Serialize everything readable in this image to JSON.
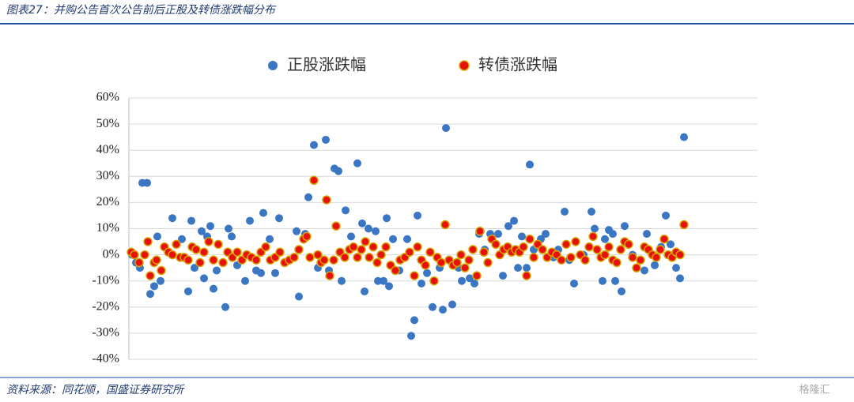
{
  "chart_data": {
    "type": "scatter",
    "title": "图表27：并购公告首次公告前后正股及转债涨跌幅分布",
    "source": "资料来源：同花顺，国盛证券研究所",
    "watermark": "格隆汇",
    "xlim": [
      0,
      795
    ],
    "ylim": [
      -40,
      60
    ],
    "yticks": [
      {
        "value": -40,
        "label": "-40%"
      },
      {
        "value": -30,
        "label": "-30%"
      },
      {
        "value": -20,
        "label": "-20%"
      },
      {
        "value": -10,
        "label": "-10%"
      },
      {
        "value": 0,
        "label": "0%"
      },
      {
        "value": 10,
        "label": "10%"
      },
      {
        "value": 20,
        "label": "20%"
      },
      {
        "value": 30,
        "label": "30%"
      },
      {
        "value": 40,
        "label": "40%"
      },
      {
        "value": 50,
        "label": "50%"
      },
      {
        "value": 60,
        "label": "60%"
      }
    ],
    "grid": true,
    "legend": "top",
    "series": [
      {
        "name": "正股涨跌幅",
        "color": "#3a76c4",
        "x": [
          4,
          9,
          14,
          17,
          23,
          27,
          32,
          36,
          40,
          55,
          67,
          75,
          79,
          83,
          92,
          95,
          99,
          103,
          107,
          111,
          122,
          126,
          130,
          137,
          147,
          153,
          161,
          167,
          170,
          178,
          185,
          190,
          212,
          215,
          223,
          227,
          234,
          239,
          249,
          253,
          260,
          265,
          269,
          274,
          281,
          289,
          295,
          298,
          303,
          312,
          315,
          322,
          326,
          329,
          334,
          342,
          352,
          357,
          361,
          365,
          370,
          377,
          384,
          393,
          397,
          401,
          409,
          417,
          421,
          431,
          437,
          443,
          450,
          457,
          467,
          473,
          480,
          487,
          492,
          497,
          503,
          507,
          512,
          521,
          527,
          537,
          543,
          551,
          557,
          563,
          575,
          585,
          589,
          599,
          602,
          607,
          612,
          615,
          623,
          627,
          637,
          652,
          655,
          665,
          673,
          679,
          685,
          692,
          697,
          702
        ],
        "values": [
          0,
          -3,
          -5,
          27.5,
          27.5,
          -15,
          -12,
          7,
          -10,
          14,
          6,
          -14,
          13,
          -5,
          9,
          -9,
          7,
          11,
          -13,
          -6,
          -20,
          10,
          7,
          -4,
          -10,
          13,
          -6,
          -7,
          16,
          6,
          -7,
          14,
          9,
          -16,
          8,
          22,
          42,
          -5,
          44,
          -6,
          33,
          32,
          -10,
          17,
          7,
          35,
          12,
          -14,
          10,
          9,
          -10,
          -10,
          14,
          -12,
          6,
          -6,
          6,
          -31,
          -25,
          15,
          -11,
          -7,
          -20,
          -5,
          -21,
          48.5,
          -19,
          -5,
          -10,
          -9,
          -11,
          8,
          2,
          8,
          8,
          -8,
          11,
          13,
          -5,
          7,
          -5,
          34.5,
          2,
          6,
          8,
          -1,
          2,
          16.5,
          -2,
          -11,
          0,
          16.5,
          10,
          -10,
          6,
          9.5,
          8,
          -10,
          -14,
          11,
          0,
          -6,
          8,
          -4,
          3,
          15,
          4,
          -5,
          -9,
          45
        ]
      },
      {
        "name": "转债涨跌幅",
        "color": "#e8100c",
        "x": [
          3,
          7,
          13,
          20,
          24,
          27,
          32,
          35,
          41,
          45,
          50,
          55,
          60,
          65,
          70,
          75,
          80,
          85,
          90,
          95,
          101,
          107,
          113,
          119,
          125,
          131,
          137,
          143,
          149,
          155,
          161,
          167,
          173,
          179,
          185,
          191,
          197,
          203,
          209,
          215,
          221,
          225,
          229,
          234,
          239,
          243,
          247,
          250,
          254,
          259,
          262,
          267,
          273,
          279,
          284,
          289,
          294,
          299,
          304,
          309,
          314,
          319,
          325,
          331,
          337,
          343,
          349,
          355,
          361,
          365,
          370,
          375,
          381,
          386,
          390,
          395,
          400,
          405,
          410,
          415,
          420,
          425,
          430,
          435,
          440,
          444,
          449,
          454,
          459,
          464,
          469,
          474,
          479,
          484,
          489,
          494,
          499,
          503,
          507,
          512,
          517,
          523,
          529,
          535,
          541,
          547,
          553,
          559,
          565,
          571,
          577,
          582,
          587,
          592,
          597,
          602,
          607,
          612,
          617,
          622,
          627,
          632,
          637,
          642,
          647,
          652,
          657,
          662,
          667,
          672,
          677,
          682,
          687,
          692,
          697,
          702
        ],
        "values": [
          1,
          0,
          -3,
          0,
          5,
          -8,
          -3,
          -2,
          -6,
          3,
          1,
          0,
          4,
          -1,
          -1,
          -2,
          3,
          2,
          -3,
          1,
          5,
          -2,
          4,
          -3,
          1,
          -1,
          1,
          -2,
          0,
          -1,
          -2,
          1,
          3,
          -2,
          -1,
          1,
          -3,
          -2,
          -1,
          2,
          6,
          7,
          -1,
          28.5,
          0,
          -3,
          -2,
          21,
          -8,
          -2,
          11,
          1,
          -1,
          2,
          3,
          -1,
          2,
          5,
          -1,
          3,
          -3,
          0,
          3,
          -4,
          -6,
          -2,
          -1,
          1,
          -8,
          3,
          -2,
          -4,
          1,
          -10,
          -1,
          -3,
          11.5,
          -2,
          -4,
          -3,
          0,
          -5,
          -2,
          2,
          -8,
          9,
          1,
          -3,
          6,
          4,
          0,
          2,
          3,
          1,
          2,
          1,
          3,
          -8,
          6,
          -1,
          4,
          2,
          -1,
          1,
          0,
          -2,
          4,
          -1,
          5,
          0,
          -2,
          3,
          7,
          2,
          -1,
          0,
          3,
          -2,
          -3,
          2,
          5,
          4,
          -1,
          -5,
          -2,
          3,
          2,
          0,
          -1,
          2,
          6,
          0,
          -1,
          1,
          0,
          11.5
        ]
      }
    ]
  }
}
